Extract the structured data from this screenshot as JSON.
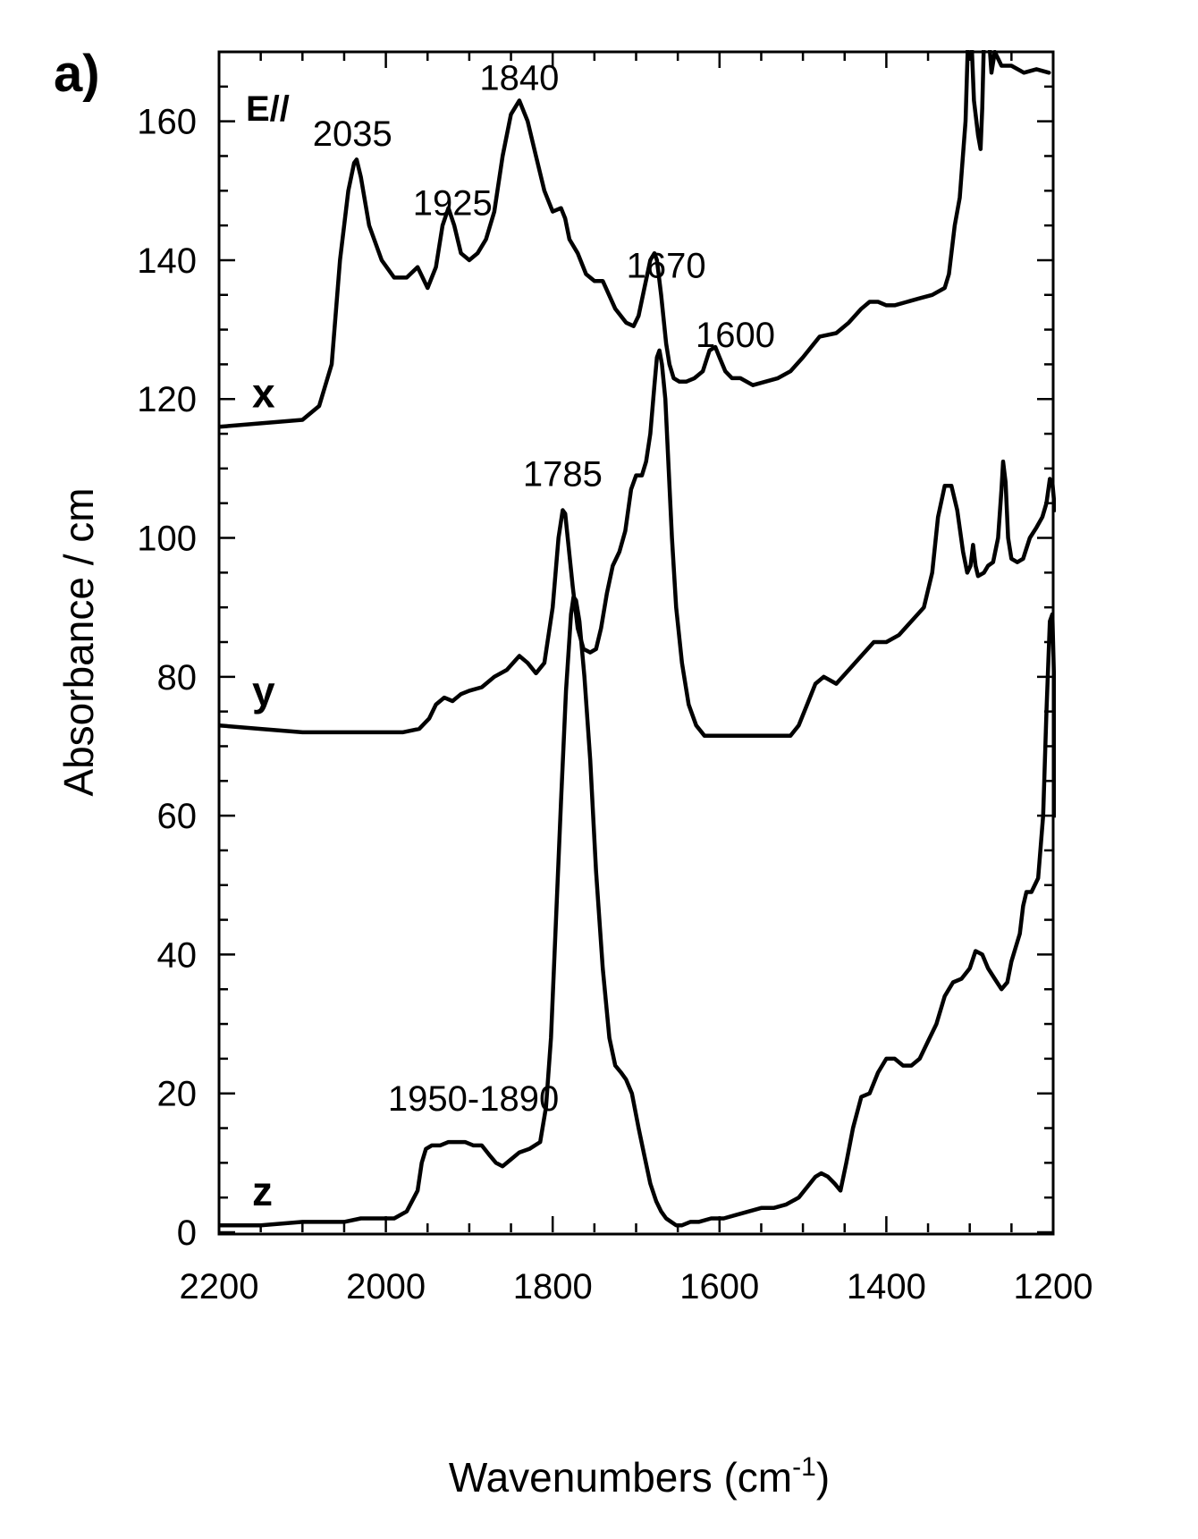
{
  "panel_label": "a)",
  "polarization_label": "E//",
  "chart_data": {
    "type": "line",
    "title": "",
    "xlabel": "Wavenumbers (cm",
    "xlabel_superscript": "-1",
    "xlabel_suffix": ")",
    "ylabel": "Absorbance / cm",
    "xlim": [
      2200,
      1200
    ],
    "ylim": [
      0,
      170
    ],
    "x_ticks": [
      2200,
      2000,
      1800,
      1600,
      1400,
      1200
    ],
    "x_tick_labels": [
      "2200",
      "2000",
      "1800",
      "1600",
      "1400",
      "1200"
    ],
    "y_ticks": [
      0,
      20,
      40,
      60,
      80,
      100,
      120,
      140,
      160
    ],
    "y_tick_labels": [
      "0",
      "20",
      "40",
      "60",
      "80",
      "100",
      "120",
      "140",
      "160"
    ],
    "grid": false,
    "series": [
      {
        "name": "x",
        "x": [
          2200,
          2150,
          2100,
          2080,
          2065,
          2055,
          2045,
          2038,
          2035,
          2030,
          2020,
          2005,
          1990,
          1975,
          1962,
          1950,
          1940,
          1932,
          1925,
          1918,
          1910,
          1900,
          1890,
          1880,
          1870,
          1860,
          1850,
          1840,
          1830,
          1820,
          1810,
          1800,
          1790,
          1785,
          1780,
          1770,
          1760,
          1750,
          1740,
          1725,
          1712,
          1703,
          1697,
          1690,
          1683,
          1678,
          1675,
          1670,
          1664,
          1660,
          1655,
          1648,
          1640,
          1630,
          1620,
          1612,
          1605,
          1600,
          1593,
          1585,
          1575,
          1560,
          1545,
          1530,
          1515,
          1500,
          1480,
          1460,
          1445,
          1430,
          1420,
          1410,
          1400,
          1390,
          1375,
          1360,
          1345,
          1330,
          1325,
          1318,
          1312,
          1305,
          1302,
          1299,
          1295,
          1290,
          1287,
          1285,
          1283,
          1280,
          1277,
          1274,
          1270,
          1262,
          1250,
          1235,
          1220,
          1205
        ],
        "values": [
          116,
          116.5,
          117,
          119,
          125,
          140,
          150,
          154,
          154.5,
          152,
          145,
          140,
          137.5,
          137.5,
          139,
          136,
          139,
          145,
          147.5,
          145,
          141,
          140,
          141,
          143,
          147,
          155,
          161,
          163,
          160,
          155,
          150,
          147,
          147.5,
          146,
          143,
          141,
          138,
          137,
          137,
          133,
          131,
          130.5,
          132,
          136,
          140,
          141,
          140,
          135,
          128,
          125,
          123,
          122.5,
          122.5,
          123,
          124,
          127,
          127.5,
          126,
          124,
          123,
          123,
          122,
          122.5,
          123,
          124,
          126,
          129,
          129.5,
          131,
          133,
          134,
          134,
          133.5,
          133.5,
          134,
          134.5,
          135,
          136,
          138,
          145,
          149,
          160,
          172,
          175,
          163,
          158,
          156,
          162,
          172,
          178,
          172,
          167,
          170,
          168,
          168,
          167,
          167.5,
          167
        ]
      },
      {
        "name": "y",
        "x": [
          2200,
          2150,
          2100,
          2050,
          2000,
          1980,
          1960,
          1948,
          1940,
          1930,
          1920,
          1910,
          1900,
          1885,
          1870,
          1855,
          1840,
          1830,
          1820,
          1810,
          1800,
          1793,
          1788,
          1785,
          1782,
          1776,
          1770,
          1763,
          1755,
          1748,
          1742,
          1735,
          1728,
          1720,
          1713,
          1706,
          1700,
          1693,
          1688,
          1683,
          1678,
          1675,
          1672,
          1669,
          1665,
          1661,
          1657,
          1652,
          1645,
          1637,
          1628,
          1618,
          1605,
          1590,
          1570,
          1550,
          1530,
          1515,
          1505,
          1495,
          1485,
          1475,
          1460,
          1445,
          1430,
          1415,
          1400,
          1385,
          1370,
          1355,
          1345,
          1338,
          1330,
          1322,
          1315,
          1308,
          1303,
          1299,
          1296,
          1293,
          1290,
          1283,
          1278,
          1272,
          1266,
          1262,
          1260,
          1257,
          1254,
          1250,
          1243,
          1236,
          1228,
          1220,
          1213,
          1208,
          1204,
          1201,
          1198
        ],
        "values": [
          73,
          72.5,
          72,
          72,
          72,
          72,
          72.5,
          74,
          76,
          77,
          76.5,
          77.5,
          78,
          78.5,
          80,
          81,
          83,
          82,
          80.5,
          82,
          90,
          100,
          104,
          103.5,
          100,
          93,
          87,
          84,
          83.5,
          84,
          87,
          92,
          96,
          98,
          101,
          107,
          109,
          109,
          111,
          115,
          122,
          126,
          127,
          125,
          120,
          110,
          100,
          90,
          82,
          76,
          73,
          71.5,
          71.5,
          71.5,
          71.5,
          71.5,
          71.5,
          71.5,
          73,
          76,
          79,
          80,
          79,
          81,
          83,
          85,
          85,
          86,
          88,
          90,
          95,
          103,
          107.5,
          107.5,
          104,
          98,
          95,
          96,
          99,
          96,
          94.5,
          95,
          96,
          96.5,
          100,
          107,
          111,
          108,
          100,
          97,
          96.5,
          97,
          100,
          101.5,
          103,
          105,
          108.5,
          108,
          104
        ]
      },
      {
        "name": "z",
        "x": [
          2200,
          2150,
          2100,
          2050,
          2030,
          2010,
          1990,
          1975,
          1962,
          1957,
          1952,
          1945,
          1935,
          1925,
          1915,
          1905,
          1895,
          1885,
          1875,
          1868,
          1860,
          1850,
          1840,
          1828,
          1815,
          1808,
          1802,
          1796,
          1790,
          1784,
          1778,
          1775,
          1772,
          1768,
          1762,
          1755,
          1748,
          1740,
          1732,
          1725,
          1718,
          1712,
          1705,
          1697,
          1690,
          1683,
          1676,
          1670,
          1664,
          1658,
          1652,
          1645,
          1635,
          1625,
          1610,
          1595,
          1580,
          1565,
          1550,
          1535,
          1520,
          1505,
          1495,
          1485,
          1478,
          1470,
          1462,
          1455,
          1448,
          1440,
          1430,
          1420,
          1410,
          1400,
          1390,
          1380,
          1370,
          1360,
          1350,
          1340,
          1330,
          1320,
          1310,
          1300,
          1293,
          1285,
          1278,
          1270,
          1262,
          1255,
          1250,
          1245,
          1240,
          1236,
          1232,
          1226,
          1218,
          1212,
          1208,
          1204,
          1201,
          1199,
          1198
        ],
        "values": [
          1,
          1,
          1.5,
          1.5,
          2,
          2,
          2,
          3,
          6,
          10,
          12,
          12.5,
          12.5,
          13,
          13,
          13,
          12.5,
          12.5,
          11,
          10,
          9.5,
          10.5,
          11.5,
          12,
          13,
          18,
          28,
          45,
          62,
          78,
          89,
          91.5,
          91,
          88,
          80,
          68,
          52,
          38,
          28,
          24,
          23,
          22,
          20,
          15,
          11,
          7,
          4.5,
          3,
          2,
          1.5,
          1,
          1,
          1.5,
          1.5,
          2,
          2,
          2.5,
          3,
          3.5,
          3.5,
          4,
          5,
          6.5,
          8,
          8.5,
          8,
          7,
          6,
          10,
          15,
          19.5,
          20,
          23,
          25,
          25,
          24,
          24,
          25,
          27.5,
          30,
          34,
          36,
          36.5,
          38,
          40.5,
          40,
          38,
          36.5,
          35,
          36,
          39,
          41,
          43,
          47,
          49,
          49,
          51,
          60,
          75,
          88,
          89,
          80,
          60
        ]
      }
    ],
    "series_labels": [
      "x",
      "y",
      "z"
    ],
    "annotations": [
      {
        "text": "2035",
        "x": 2040,
        "y": 156.5
      },
      {
        "text": "1925",
        "x": 1920,
        "y": 146.5
      },
      {
        "text": "1840",
        "x": 1840,
        "y": 164.5
      },
      {
        "text": "1670",
        "x": 1664,
        "y": 137.5
      },
      {
        "text": "1600",
        "x": 1581,
        "y": 127.5
      },
      {
        "text": "1785",
        "x": 1788,
        "y": 107.5
      },
      {
        "text": "1950-1890",
        "x": 1895,
        "y": 17.5
      }
    ]
  }
}
